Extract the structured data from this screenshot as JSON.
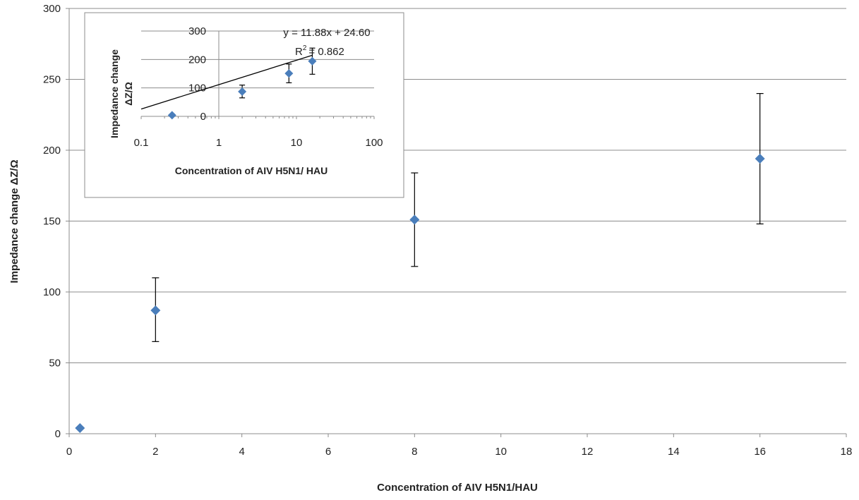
{
  "chart_data": [
    {
      "type": "scatter",
      "title": "",
      "xlabel": "Concentration of AIV H5N1/HAU",
      "ylabel": "Impedance change  ΔZ/Ω",
      "xlim": [
        0,
        18
      ],
      "ylim": [
        0,
        300
      ],
      "x_ticks": [
        "0",
        "2",
        "4",
        "6",
        "8",
        "10",
        "12",
        "14",
        "16",
        "18"
      ],
      "y_ticks": [
        "0",
        "50",
        "100",
        "150",
        "200",
        "250",
        "300"
      ],
      "grid": "horizontal",
      "marker_color": "#4a7ebb",
      "points": [
        {
          "x": 0.25,
          "y": 4,
          "err_low": null,
          "err_high": null
        },
        {
          "x": 2,
          "y": 87,
          "err_low": 65,
          "err_high": 110
        },
        {
          "x": 8,
          "y": 151,
          "err_low": 118,
          "err_high": 184
        },
        {
          "x": 16,
          "y": 194,
          "err_low": 148,
          "err_high": 240
        }
      ]
    },
    {
      "type": "scatter",
      "title": "",
      "xlabel": "Concentration of AIV H5N1/ HAU",
      "ylabel_line1": "Impedance change",
      "ylabel_line2": "ΔZ/Ω",
      "x_scale": "log",
      "xlim": [
        0.1,
        100
      ],
      "ylim": [
        0,
        300
      ],
      "x_ticks": [
        "0.1",
        "1",
        "10",
        "100"
      ],
      "y_ticks": [
        "0",
        "100",
        "200",
        "300"
      ],
      "grid": "horizontal",
      "marker_color": "#4a7ebb",
      "points": [
        {
          "x": 0.25,
          "y": 4,
          "err_low": null,
          "err_high": null
        },
        {
          "x": 2,
          "y": 87,
          "err_low": 65,
          "err_high": 110
        },
        {
          "x": 8,
          "y": 151,
          "err_low": 118,
          "err_high": 184
        },
        {
          "x": 16,
          "y": 194,
          "err_low": 148,
          "err_high": 240
        }
      ],
      "trendline": {
        "equation": "y = 11.88x + 24.60",
        "r2_label": "R",
        "r2_sup": "2",
        "r2_value": "= 0.862",
        "x_range": [
          0.1,
          16
        ]
      }
    }
  ]
}
